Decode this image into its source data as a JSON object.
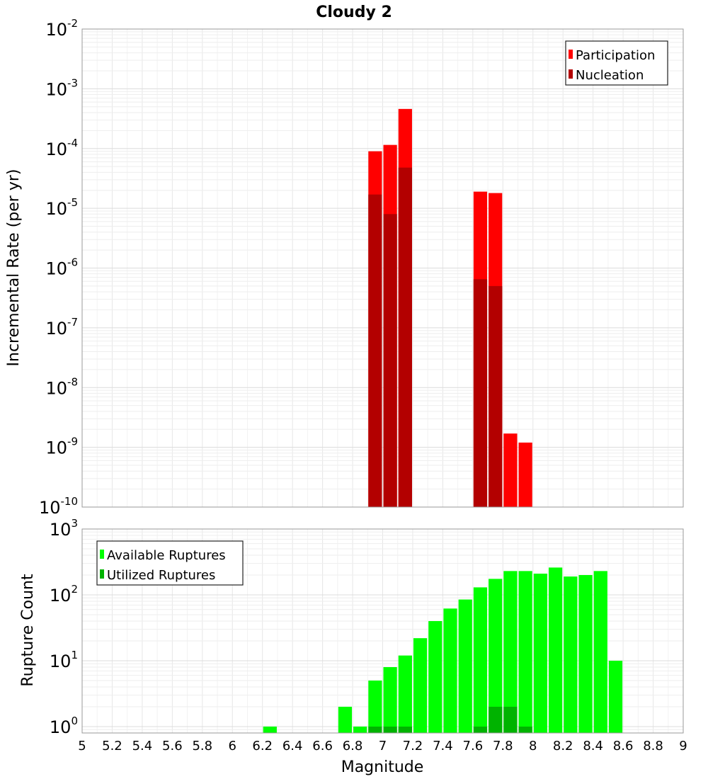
{
  "chart_data": [
    {
      "type": "bar",
      "title": "Cloudy 2",
      "ylabel": "Incremental Rate (per yr)",
      "yscale": "log",
      "ylim": [
        1e-10,
        0.01
      ],
      "xlim": [
        5,
        9
      ],
      "bin_width": 0.1,
      "y_tick_labels": [
        {
          "v": 1e-10,
          "base": "10",
          "exp": "-10"
        },
        {
          "v": 1e-09,
          "base": "10",
          "exp": "-9"
        },
        {
          "v": 1e-08,
          "base": "10",
          "exp": "-8"
        },
        {
          "v": 1e-07,
          "base": "10",
          "exp": "-7"
        },
        {
          "v": 1e-06,
          "base": "10",
          "exp": "-6"
        },
        {
          "v": 1e-05,
          "base": "10",
          "exp": "-5"
        },
        {
          "v": 0.0001,
          "base": "10",
          "exp": "-4"
        },
        {
          "v": 0.001,
          "base": "10",
          "exp": "-3"
        },
        {
          "v": 0.01,
          "base": "10",
          "exp": "-2"
        }
      ],
      "legend": {
        "position": "top-right"
      },
      "series": [
        {
          "name": "Participation",
          "color": "#ff0000",
          "x": [
            6.95,
            7.05,
            7.15,
            7.65,
            7.75,
            7.85,
            7.95
          ],
          "values": [
            9e-05,
            0.000115,
            0.00046,
            1.9e-05,
            1.8e-05,
            1.7e-09,
            1.2e-09
          ]
        },
        {
          "name": "Nucleation",
          "color": "#b30000",
          "x": [
            6.95,
            7.05,
            7.15,
            7.65,
            7.75
          ],
          "values": [
            1.7e-05,
            8e-06,
            4.8e-05,
            6.5e-07,
            5e-07
          ]
        }
      ]
    },
    {
      "type": "bar",
      "xlabel": "Magnitude",
      "ylabel": "Rupture Count",
      "yscale": "log",
      "ylim": [
        0.8,
        1000
      ],
      "xlim": [
        5,
        9
      ],
      "bin_width": 0.1,
      "y_tick_labels": [
        {
          "v": 1,
          "base": "10",
          "exp": "0"
        },
        {
          "v": 10,
          "base": "10",
          "exp": "1"
        },
        {
          "v": 100,
          "base": "10",
          "exp": "2"
        },
        {
          "v": 1000,
          "base": "10",
          "exp": "3"
        }
      ],
      "x_ticks": [
        "5",
        "5.2",
        "5.4",
        "5.6",
        "5.8",
        "6",
        "6.2",
        "6.4",
        "6.6",
        "6.8",
        "7",
        "7.2",
        "7.4",
        "7.6",
        "7.8",
        "8",
        "8.2",
        "8.4",
        "8.6",
        "8.8",
        "9"
      ],
      "legend": {
        "position": "top-left"
      },
      "series": [
        {
          "name": "Available Ruptures",
          "color": "#00ff00",
          "x": [
            6.25,
            6.75,
            6.85,
            6.95,
            7.05,
            7.15,
            7.25,
            7.35,
            7.45,
            7.55,
            7.65,
            7.75,
            7.85,
            7.95,
            8.05,
            8.15,
            8.25,
            8.35,
            8.45,
            8.55
          ],
          "values": [
            1,
            2,
            1,
            5,
            8,
            12,
            22,
            40,
            62,
            85,
            130,
            175,
            230,
            230,
            210,
            260,
            190,
            200,
            230,
            10
          ]
        },
        {
          "name": "Utilized Ruptures",
          "color": "#00b300",
          "x": [
            6.95,
            7.05,
            7.15,
            7.65,
            7.75,
            7.85,
            7.95
          ],
          "values": [
            1,
            1,
            1,
            1,
            2,
            2,
            1
          ]
        }
      ]
    }
  ]
}
